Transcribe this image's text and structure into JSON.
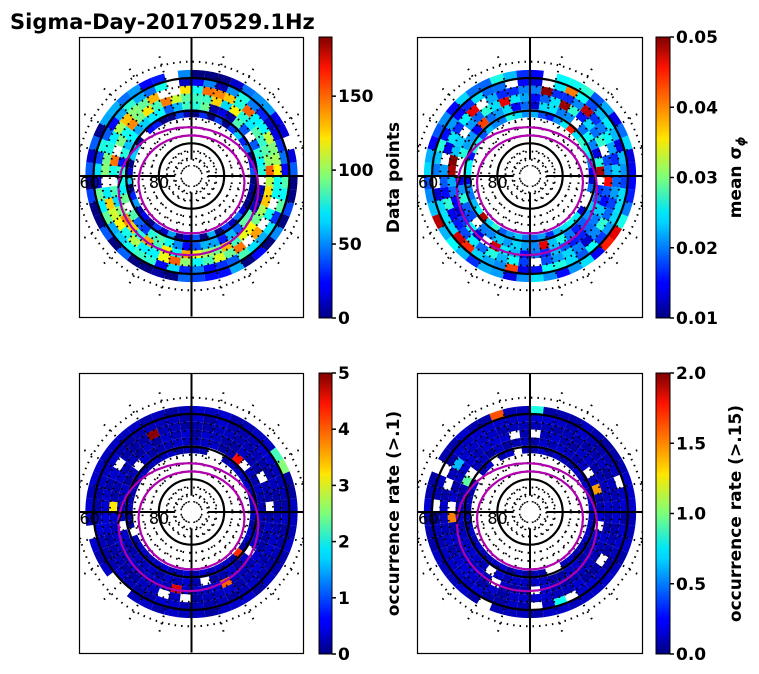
{
  "chart_data": {
    "type": "heatmap",
    "title": "Sigma-Day-20170529.1Hz",
    "projection": "polar (magnetic latitude / MLT)",
    "lat_labels": [
      "60",
      "70",
      "80"
    ],
    "lat_range": [
      50,
      90
    ],
    "colormap": "jet",
    "overlay_colors": {
      "grid": "#000000",
      "oval": "#b000b0"
    },
    "panels": [
      {
        "id": "data-points",
        "colorbar_label": "Data points",
        "colorbar_range": [
          0,
          190
        ],
        "colorbar_ticks": [
          "0",
          "50",
          "100",
          "150"
        ],
        "colorbar_tick_values": [
          0,
          50,
          100,
          150
        ],
        "ring_lat_range": [
          58,
          72
        ],
        "level_profile": "high"
      },
      {
        "id": "mean-sigma-phi",
        "colorbar_label": "mean σφ",
        "colorbar_label_main": "mean σ",
        "colorbar_label_sub": "ϕ",
        "colorbar_range": [
          0.01,
          0.05
        ],
        "colorbar_ticks": [
          "0.01",
          "0.02",
          "0.03",
          "0.04",
          "0.05"
        ],
        "colorbar_tick_values": [
          0.01,
          0.02,
          0.03,
          0.04,
          0.05
        ],
        "ring_lat_range": [
          58,
          72
        ],
        "level_profile": "mid"
      },
      {
        "id": "occurrence-0.1",
        "colorbar_label": "occurrence rate (>.1)",
        "colorbar_range": [
          0,
          5
        ],
        "colorbar_ticks": [
          "0",
          "1",
          "2",
          "3",
          "4",
          "5"
        ],
        "colorbar_tick_values": [
          0,
          1,
          2,
          3,
          4,
          5
        ],
        "ring_lat_range": [
          58,
          72
        ],
        "level_profile": "low"
      },
      {
        "id": "occurrence-0.15",
        "colorbar_label": "occurrence rate (>.15)",
        "colorbar_range": [
          0,
          2
        ],
        "colorbar_ticks": [
          "0.0",
          "0.5",
          "1.0",
          "1.5",
          "2.0"
        ],
        "colorbar_tick_values": [
          0,
          0.5,
          1.0,
          1.5,
          2.0
        ],
        "ring_lat_range": [
          58,
          72
        ],
        "level_profile": "low"
      }
    ]
  }
}
